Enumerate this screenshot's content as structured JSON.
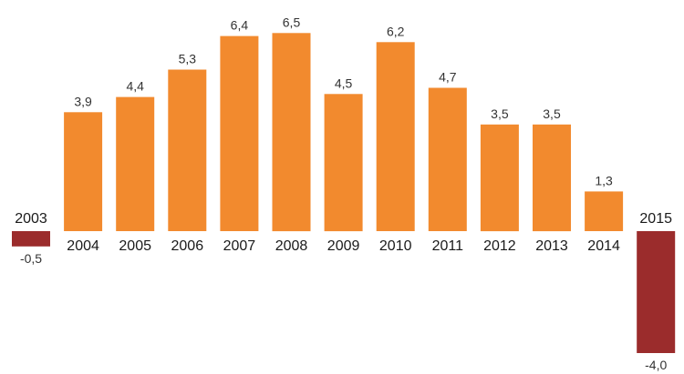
{
  "chart_data": {
    "type": "bar",
    "title": "",
    "xlabel": "",
    "ylabel": "",
    "categories": [
      "2003",
      "2004",
      "2005",
      "2006",
      "2007",
      "2008",
      "2009",
      "2010",
      "2011",
      "2012",
      "2013",
      "2014",
      "2015"
    ],
    "values": [
      -0.5,
      3.9,
      4.4,
      5.3,
      6.4,
      6.5,
      4.5,
      6.2,
      4.7,
      3.5,
      3.5,
      1.3,
      -4.0
    ],
    "value_labels": [
      "-0,5",
      "3,9",
      "4,4",
      "5,3",
      "6,4",
      "6,5",
      "4,5",
      "6,2",
      "4,7",
      "3,5",
      "3,5",
      "1,3",
      "-4,0"
    ],
    "ylim": [
      -4.0,
      6.5
    ],
    "grid": false,
    "colors": {
      "positive": "#f28a2e",
      "negative": "#9b2c2c"
    }
  }
}
